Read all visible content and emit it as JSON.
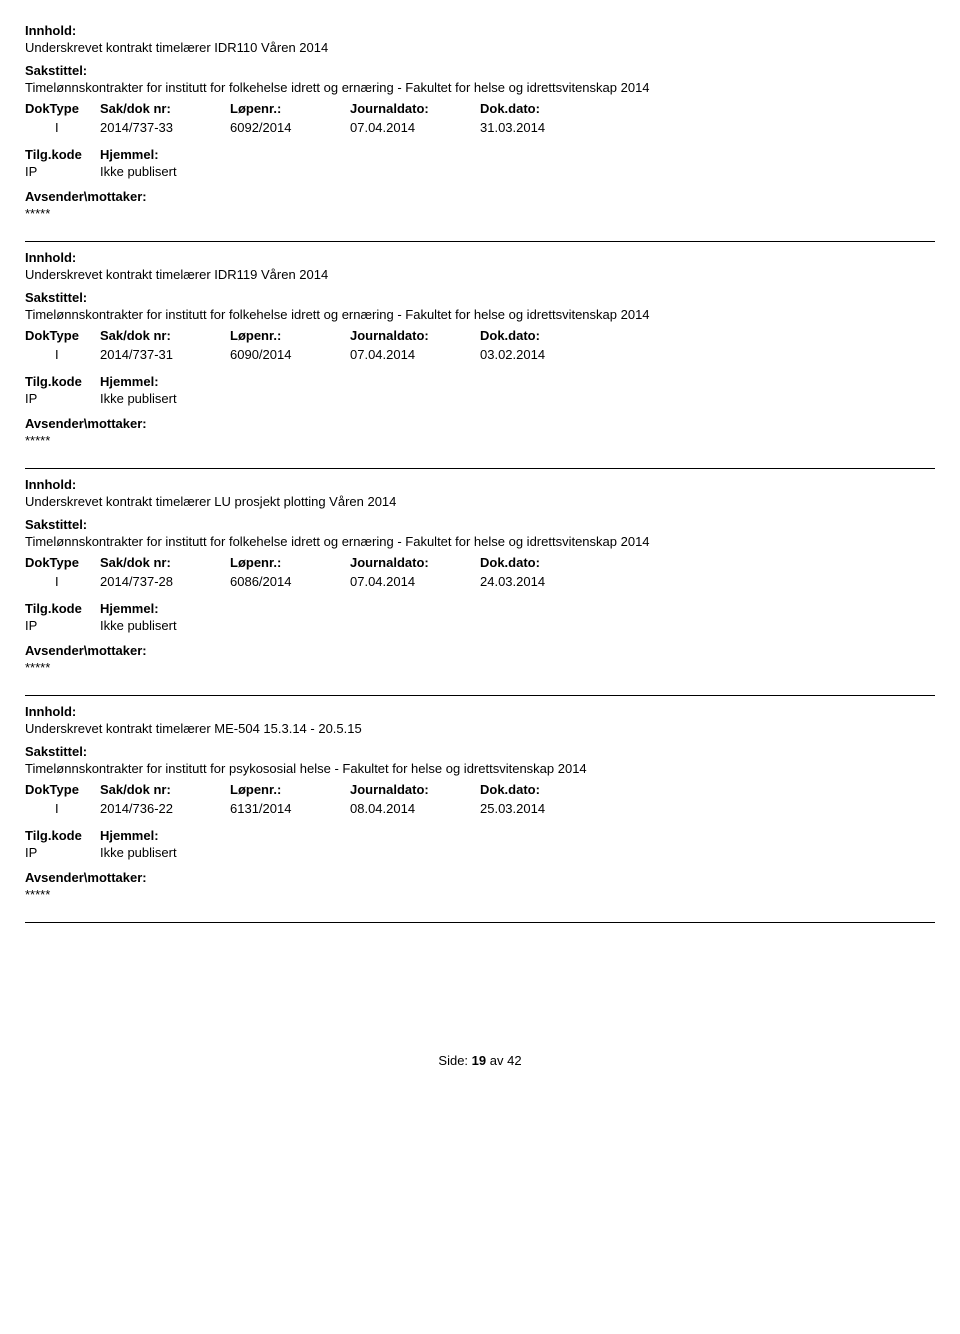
{
  "labels": {
    "innhold": "Innhold:",
    "sakstittel": "Sakstittel:",
    "doktype": "DokType",
    "sakdoknr": "Sak/dok nr:",
    "lopenr": "Løpenr.:",
    "journaldato": "Journaldato:",
    "dokdato": "Dok.dato:",
    "tilgkode": "Tilg.kode",
    "hjemmel": "Hjemmel:",
    "avsender": "Avsender\\mottaker:"
  },
  "records": [
    {
      "innhold": "Underskrevet kontrakt timelærer IDR110 Våren 2014",
      "sakstittel": "Timelønnskontrakter for institutt for folkehelse idrett og ernæring - Fakultet for helse og idrettsvitenskap 2014",
      "doktype": "I",
      "sakdoknr": "2014/737-33",
      "lopenr": "6092/2014",
      "journaldato": "07.04.2014",
      "dokdato": "31.03.2014",
      "tilgkode": "IP",
      "hjemmel": "Ikke publisert",
      "avsender": "*****"
    },
    {
      "innhold": "Underskrevet kontrakt timelærer IDR119 Våren 2014",
      "sakstittel": "Timelønnskontrakter for institutt for folkehelse idrett og ernæring - Fakultet for helse og idrettsvitenskap 2014",
      "doktype": "I",
      "sakdoknr": "2014/737-31",
      "lopenr": "6090/2014",
      "journaldato": "07.04.2014",
      "dokdato": "03.02.2014",
      "tilgkode": "IP",
      "hjemmel": "Ikke publisert",
      "avsender": "*****"
    },
    {
      "innhold": "Underskrevet kontrakt timelærer LU prosjekt plotting Våren 2014",
      "sakstittel": "Timelønnskontrakter for institutt for folkehelse idrett og ernæring - Fakultet for helse og idrettsvitenskap 2014",
      "doktype": "I",
      "sakdoknr": "2014/737-28",
      "lopenr": "6086/2014",
      "journaldato": "07.04.2014",
      "dokdato": "24.03.2014",
      "tilgkode": "IP",
      "hjemmel": "Ikke publisert",
      "avsender": "*****"
    },
    {
      "innhold": "Underskrevet kontrakt timelærer ME-504 15.3.14 - 20.5.15",
      "sakstittel": "Timelønnskontrakter for institutt for psykososial helse - Fakultet for helse og idrettsvitenskap 2014",
      "doktype": "I",
      "sakdoknr": "2014/736-22",
      "lopenr": "6131/2014",
      "journaldato": "08.04.2014",
      "dokdato": "25.03.2014",
      "tilgkode": "IP",
      "hjemmel": "Ikke publisert",
      "avsender": "*****"
    }
  ],
  "footer": {
    "side": "Side:",
    "page": "19",
    "av": "av",
    "total": "42"
  }
}
